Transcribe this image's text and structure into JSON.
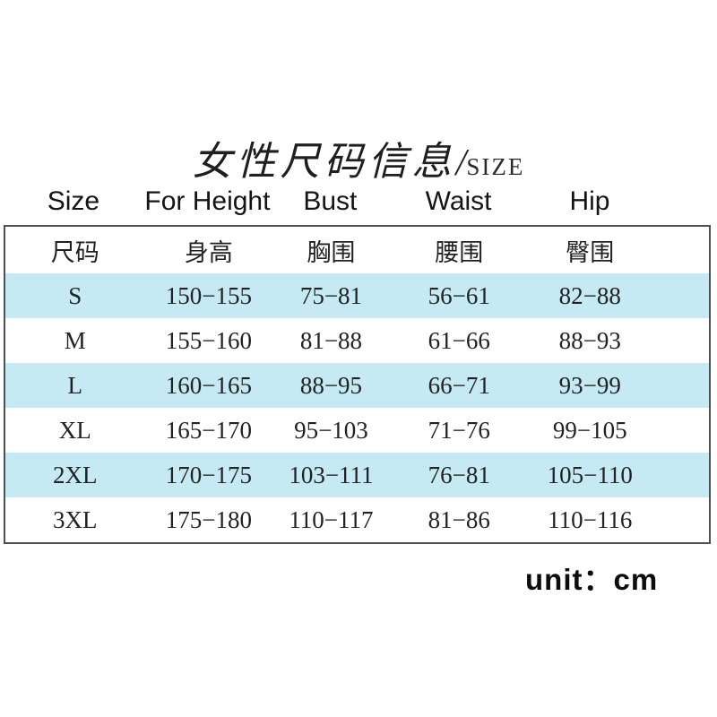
{
  "title": {
    "zh": "女性尺码信息",
    "separator": "/",
    "en": "SIZE"
  },
  "footer": {
    "unit": "unit：cm"
  },
  "colors": {
    "stripe": "#c5eaf4",
    "border": "#4f4f4f",
    "text": "#222222"
  },
  "chart_data": {
    "type": "table",
    "title": "女性尺码信息/SIZE",
    "unit": "cm",
    "columns_en": [
      "Size",
      "For Height",
      "Bust",
      "Waist",
      "Hip"
    ],
    "columns_zh": [
      "尺码",
      "身高",
      "胸围",
      "腰围",
      "臀围"
    ],
    "rows": [
      [
        "S",
        "150−155",
        "75−81",
        "56−61",
        "82−88"
      ],
      [
        "M",
        "155−160",
        "81−88",
        "61−66",
        "88−93"
      ],
      [
        "L",
        "160−165",
        "88−95",
        "66−71",
        "93−99"
      ],
      [
        "XL",
        "165−170",
        "95−103",
        "71−76",
        "99−105"
      ],
      [
        "2XL",
        "170−175",
        "103−111",
        "76−81",
        "105−110"
      ],
      [
        "3XL",
        "175−180",
        "110−117",
        "81−86",
        "110−116"
      ]
    ]
  }
}
